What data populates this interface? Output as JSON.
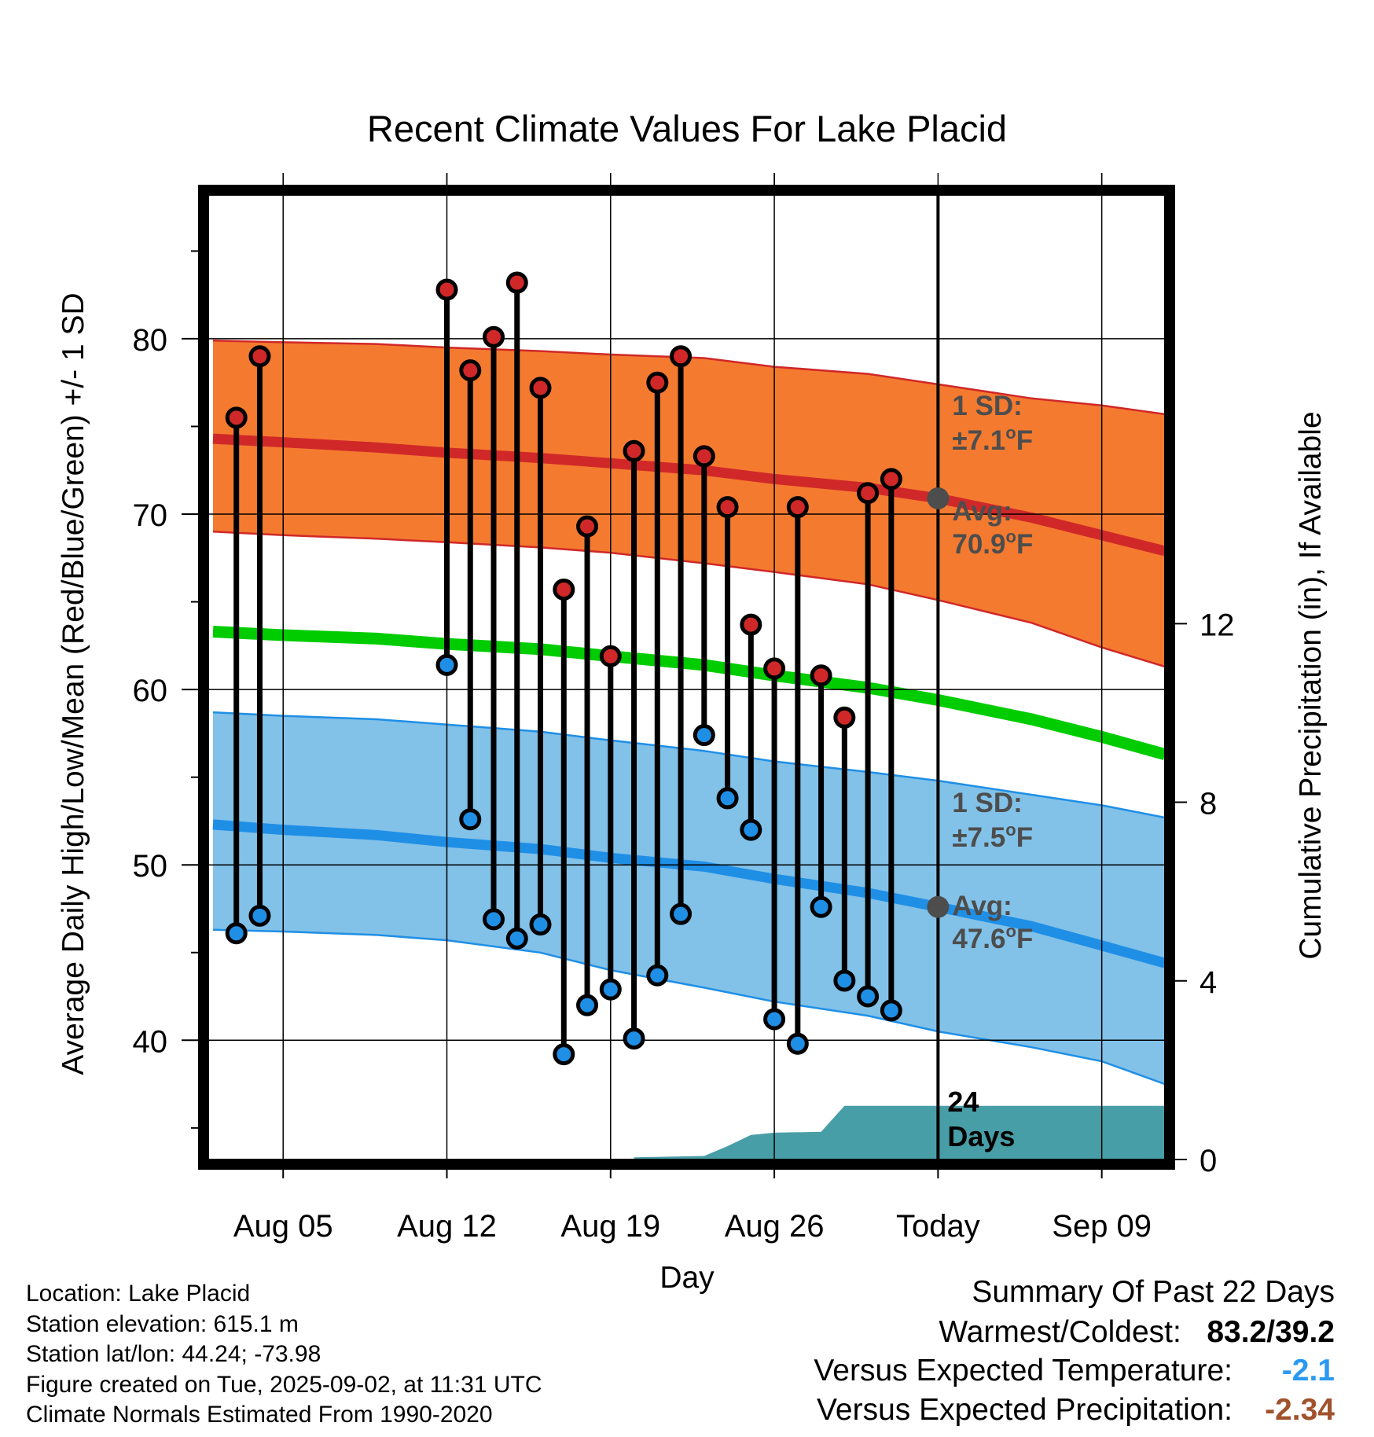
{
  "chart_data": {
    "type": "line",
    "title": "Recent Climate Values For Lake Placid",
    "xlabel": "Day",
    "ylabel": "Average Daily High/Low/Mean (Red/Blue/Green) +/- 1 SD",
    "y2label": "Cumulative Precipitation (in), If Available",
    "x_tick_labels": [
      "Aug 05",
      "Aug 12",
      "Aug 19",
      "Aug 26",
      "Today",
      "Sep 09"
    ],
    "x_tick_days": [
      4,
      11,
      18,
      25,
      32,
      39
    ],
    "xlim": [
      0.8,
      41.7
    ],
    "ylim": [
      33.2,
      88.2
    ],
    "y_ticks": [
      40,
      50,
      60,
      70,
      80
    ],
    "y2lim": [
      0,
      21.6
    ],
    "y2_ticks": [
      0,
      4,
      8,
      12
    ],
    "grid": true,
    "today_day": 32,
    "normals": {
      "days": [
        1,
        4,
        8,
        11,
        15,
        18,
        22,
        25,
        29,
        32,
        36,
        39,
        41.7
      ],
      "high_mean": [
        74.3,
        74.1,
        73.8,
        73.5,
        73.2,
        72.9,
        72.5,
        72.0,
        71.5,
        70.9,
        69.8,
        68.8,
        67.9
      ],
      "high_upper": [
        79.9,
        79.8,
        79.7,
        79.5,
        79.3,
        79.1,
        78.9,
        78.4,
        78.0,
        77.4,
        76.6,
        76.2,
        75.7
      ],
      "high_lower": [
        69.0,
        68.8,
        68.6,
        68.4,
        68.1,
        67.8,
        67.2,
        66.7,
        66.0,
        65.1,
        63.8,
        62.4,
        61.3
      ],
      "mean_mean": [
        63.3,
        63.1,
        62.9,
        62.6,
        62.3,
        61.9,
        61.4,
        60.8,
        60.1,
        59.4,
        58.3,
        57.3,
        56.3
      ],
      "low_mean": [
        52.3,
        52.0,
        51.7,
        51.3,
        50.9,
        50.4,
        49.9,
        49.2,
        48.4,
        47.6,
        46.5,
        45.4,
        44.4
      ],
      "low_upper": [
        58.7,
        58.5,
        58.3,
        58.0,
        57.6,
        57.1,
        56.5,
        55.9,
        55.3,
        54.8,
        54.0,
        53.4,
        52.7
      ],
      "low_lower": [
        46.3,
        46.2,
        46.0,
        45.7,
        45.0,
        44.0,
        43.0,
        42.2,
        41.4,
        40.5,
        39.6,
        38.8,
        37.5
      ]
    },
    "series": [
      {
        "name": "High",
        "color": "#d02828",
        "days": [
          2,
          3,
          11,
          12,
          13,
          14,
          15,
          16,
          17,
          18,
          19,
          20,
          21,
          22,
          23,
          24,
          25,
          26,
          27,
          28,
          29,
          30
        ],
        "values": [
          75.5,
          79.0,
          82.8,
          78.2,
          80.1,
          83.2,
          77.2,
          65.7,
          69.3,
          61.9,
          73.6,
          77.5,
          79.0,
          73.3,
          70.4,
          63.7,
          61.2,
          70.4,
          60.8,
          58.4,
          71.2,
          72.0
        ]
      },
      {
        "name": "Low",
        "color": "#1f8fe6",
        "days": [
          2,
          3,
          11,
          12,
          13,
          14,
          15,
          16,
          17,
          18,
          19,
          20,
          21,
          22,
          23,
          24,
          25,
          26,
          27,
          28,
          29,
          30
        ],
        "values": [
          46.1,
          47.1,
          61.4,
          52.6,
          46.9,
          45.8,
          46.6,
          39.2,
          42.0,
          42.9,
          40.1,
          43.7,
          47.2,
          57.4,
          53.8,
          52.0,
          41.2,
          39.8,
          47.6,
          43.4,
          42.5,
          41.7
        ]
      }
    ],
    "precipitation": {
      "days": [
        19,
        22,
        23,
        24,
        25,
        27,
        28,
        41.7
      ],
      "cumulative": [
        0.05,
        0.08,
        0.3,
        0.55,
        0.6,
        0.62,
        1.2,
        1.2
      ]
    },
    "annotations": {
      "high_sd_label": "1 SD:",
      "high_sd_value": "±7.1",
      "high_avg_label": "Avg:",
      "high_avg_value": "70.9",
      "low_sd_label": "1 SD:",
      "low_sd_value": "±7.5",
      "low_avg_label": "Avg:",
      "low_avg_value": "47.6",
      "degree_sup": "o",
      "unit_f": "F",
      "days_count": "24",
      "days_word": "Days"
    }
  },
  "station": {
    "location": "Location: Lake Placid",
    "elevation": "Station elevation: 615.1 m",
    "latlon": "Station lat/lon: 44.24; -73.98",
    "created": "Figure created on Tue, 2025-09-02, at 11:31 UTC",
    "normals": "Climate Normals Estimated From 1990-2020"
  },
  "summary": {
    "heading": "Summary Of Past 22 Days",
    "warm_cold_label": "Warmest/Coldest:",
    "warm_cold_value": "83.2/39.2",
    "temp_label": "Versus Expected Temperature:",
    "temp_value": "-2.1",
    "temp_color": "#2a9af0",
    "precip_label": "Versus Expected Precipitation:",
    "precip_value": "-2.34",
    "precip_color": "#a0522d"
  },
  "colors": {
    "high_band": "#f47a30",
    "high_line": "#d02828",
    "mean_line": "#00cc00",
    "low_band": "#82c1e8",
    "low_line": "#1f8fe6",
    "precip_fill": "#489ea6"
  }
}
